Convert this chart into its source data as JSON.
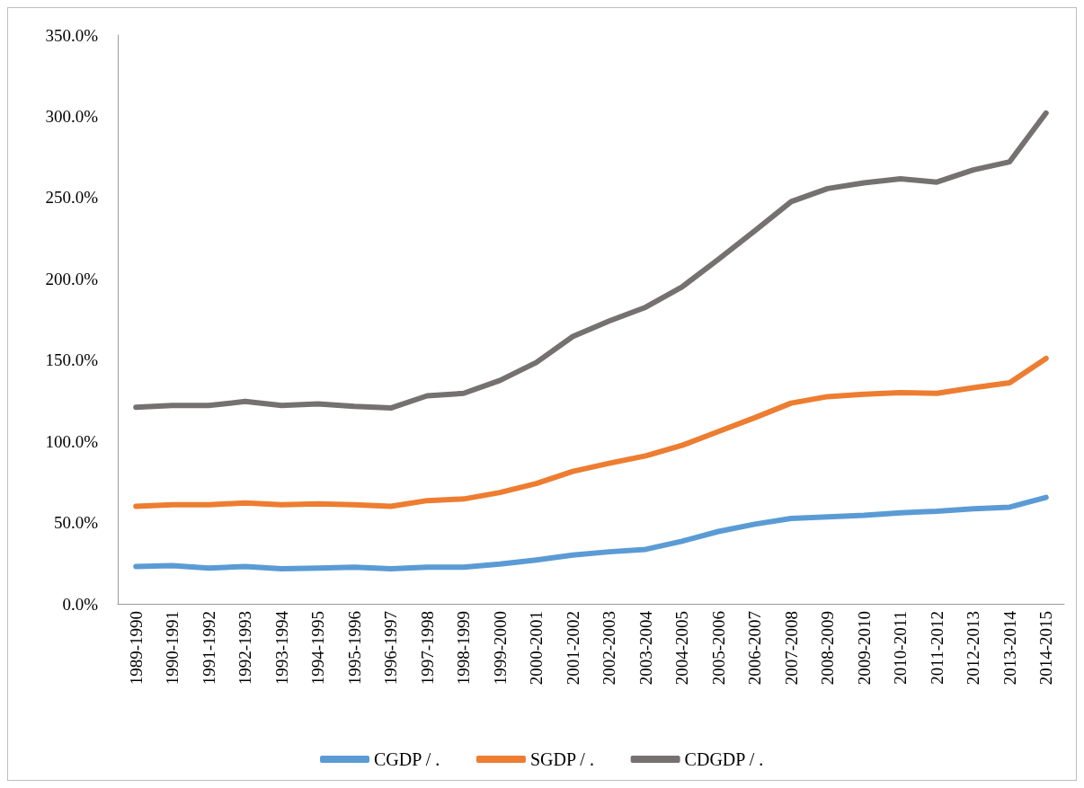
{
  "chart_data": {
    "type": "line",
    "categories": [
      "1989-1990",
      "1990-1991",
      "1991-1992",
      "1992-1993",
      "1993-1994",
      "1994-1995",
      "1995-1996",
      "1996-1997",
      "1997-1998",
      "1998-1999",
      "1999-2000",
      "2000-2001",
      "2001-2002",
      "2002-2003",
      "2003-2004",
      "2004-2005",
      "2005-2006",
      "2006-2007",
      "2007-2008",
      "2008-2009",
      "2009-2010",
      "2010-2011",
      "2011-2012",
      "2012-2013",
      "2013-2014",
      "2014-2015"
    ],
    "series": [
      {
        "name": "CGDP / .",
        "color": "#5b9bd5",
        "values": [
          23,
          23.5,
          22,
          23,
          21.5,
          22,
          22.5,
          21.5,
          22.5,
          22.5,
          24.5,
          27,
          30,
          32,
          33.5,
          38.5,
          44.5,
          49,
          52.5,
          53.5,
          54.5,
          56,
          57,
          58.5,
          59.5,
          65.5
        ]
      },
      {
        "name": "SGDP / .",
        "color": "#ed7d31",
        "values": [
          60,
          61,
          61,
          62,
          61,
          61.5,
          61,
          60,
          63.5,
          64.5,
          68.5,
          74,
          81.5,
          86.5,
          91,
          97.5,
          106,
          114.5,
          123.5,
          127.5,
          129,
          130,
          129.5,
          133,
          136,
          151
        ]
      },
      {
        "name": "CDGDP / .",
        "color": "#767171",
        "values": [
          121,
          122,
          122,
          124.5,
          122,
          123,
          121.5,
          120.5,
          128,
          129.5,
          137.5,
          148.5,
          164.5,
          174,
          182.5,
          195,
          212,
          229.5,
          247.5,
          255.5,
          259,
          261.5,
          259.5,
          267,
          272,
          302
        ]
      }
    ],
    "ylim": [
      0,
      350
    ],
    "yticks": [
      {
        "value": 0,
        "label": "0.0%"
      },
      {
        "value": 50,
        "label": "50.0%"
      },
      {
        "value": 100,
        "label": "100.0%"
      },
      {
        "value": 150,
        "label": "150.0%"
      },
      {
        "value": 200,
        "label": "200.0%"
      },
      {
        "value": 250,
        "label": "250.0%"
      },
      {
        "value": 300,
        "label": "300.0%"
      },
      {
        "value": 350,
        "label": "350.0%"
      }
    ],
    "grid": false,
    "legend": "bottom",
    "marker": "none",
    "line_style": "solid"
  }
}
